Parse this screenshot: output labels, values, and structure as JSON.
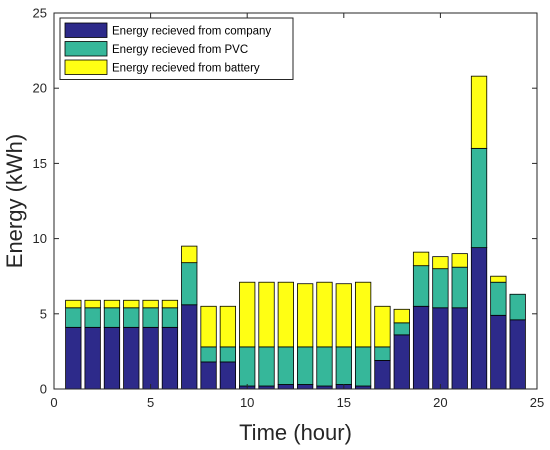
{
  "chart_data": {
    "type": "bar",
    "stacked": true,
    "xlabel": "Time (hour)",
    "ylabel": "Energy (kWh)",
    "xlim": [
      0,
      25
    ],
    "ylim": [
      0,
      25
    ],
    "xticks": [
      "0",
      "5",
      "10",
      "15",
      "20",
      "25"
    ],
    "yticks": [
      "0",
      "5",
      "10",
      "15",
      "20",
      "25"
    ],
    "grid": false,
    "legend_position": "top-left",
    "x": [
      1,
      2,
      3,
      4,
      5,
      6,
      7,
      8,
      9,
      10,
      11,
      12,
      13,
      14,
      15,
      16,
      17,
      18,
      19,
      20,
      21,
      22,
      23,
      24
    ],
    "series": [
      {
        "name": "Energy recieved from  company",
        "color": "#2d2a8a",
        "values": [
          4.1,
          4.1,
          4.1,
          4.1,
          4.1,
          4.1,
          5.6,
          1.8,
          1.8,
          0.2,
          0.2,
          0.3,
          0.3,
          0.2,
          0.3,
          0.2,
          1.9,
          3.6,
          5.5,
          5.4,
          5.4,
          9.4,
          4.9,
          4.6
        ]
      },
      {
        "name": "Energy recieved from PVC",
        "color": "#36b79a",
        "values": [
          1.3,
          1.3,
          1.3,
          1.3,
          1.3,
          1.3,
          2.8,
          1.0,
          1.0,
          2.6,
          2.6,
          2.5,
          2.5,
          2.6,
          2.5,
          2.6,
          0.9,
          0.8,
          2.7,
          2.6,
          2.7,
          6.6,
          2.2,
          1.7
        ]
      },
      {
        "name": "Energy recieved from battery",
        "color": "#ffff14",
        "values": [
          0.5,
          0.5,
          0.5,
          0.5,
          0.5,
          0.5,
          1.1,
          2.7,
          2.7,
          4.3,
          4.3,
          4.3,
          4.2,
          4.3,
          4.2,
          4.3,
          2.7,
          0.9,
          0.9,
          0.8,
          0.9,
          4.8,
          0.4,
          0.0
        ]
      }
    ]
  }
}
